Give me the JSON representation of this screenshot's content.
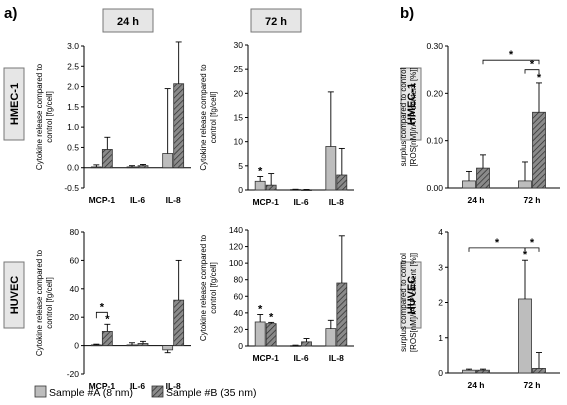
{
  "panel_labels": {
    "a": "a)",
    "b": "b)"
  },
  "col_headers": [
    "24 h",
    "72 h"
  ],
  "row_labels": [
    "HMEC-1",
    "HUVEC"
  ],
  "legend": {
    "sample_a": "Sample #A (8 nm)",
    "sample_b": "Sample #B (35 nm)",
    "colors": {
      "sample_a": "#bdbdbd",
      "sample_b": "#8a8a8a"
    },
    "sample_b_pattern": "diagonal-hatch"
  },
  "chart_data": [
    {
      "id": "hmec_24h",
      "type": "bar",
      "ylabel_line1": "Cytokine release  compared to",
      "ylabel_line2": "control  [fg/cell]",
      "categories": [
        "MCP-1",
        "IL-6",
        "IL-8"
      ],
      "ylim": [
        -0.5,
        3.0
      ],
      "yticks": [
        "-0.5",
        "0.0",
        "0.5",
        "1.0",
        "1.5",
        "2.0",
        "2.5",
        "3.0"
      ],
      "yticks_values": [
        -0.5,
        0.0,
        0.5,
        1.0,
        1.5,
        2.0,
        2.5,
        3.0
      ],
      "series": [
        {
          "name": "Sample #A (8 nm)",
          "values": [
            0.02,
            0.02,
            0.35
          ],
          "errors": [
            0.05,
            0.03,
            1.6
          ]
        },
        {
          "name": "Sample #B (35 nm)",
          "values": [
            0.45,
            0.05,
            2.07
          ],
          "errors": [
            0.3,
            0.03,
            1.03
          ]
        }
      ],
      "annotations": []
    },
    {
      "id": "hmec_72h",
      "type": "bar",
      "ylabel_line1": "Cytokine release  compared to",
      "ylabel_line2": "control  [fg/cell]",
      "categories": [
        "MCP-1",
        "IL-6",
        "IL-8"
      ],
      "ylim": [
        0,
        30
      ],
      "yticks": [
        "0",
        "5",
        "10",
        "15",
        "20",
        "25",
        "30"
      ],
      "yticks_values": [
        0,
        5,
        10,
        15,
        20,
        25,
        30
      ],
      "series": [
        {
          "name": "Sample #A (8 nm)",
          "values": [
            1.8,
            0.1,
            9.0
          ],
          "errors": [
            1.0,
            0.05,
            11.3
          ]
        },
        {
          "name": "Sample #B (35 nm)",
          "values": [
            1.0,
            0.05,
            3.1
          ],
          "errors": [
            2.4,
            0.05,
            5.5
          ]
        }
      ],
      "annotations": [
        {
          "text": "*",
          "category": 0,
          "series": 0
        }
      ]
    },
    {
      "id": "huvec_24h",
      "type": "bar",
      "ylabel_line1": "Cytokine release  compared to",
      "ylabel_line2": "control  [fg/cell]",
      "categories": [
        "MCP-1",
        "IL-6",
        "IL-8"
      ],
      "ylim": [
        -20,
        80
      ],
      "yticks": [
        "-20",
        "0",
        "20",
        "40",
        "60",
        "80"
      ],
      "yticks_values": [
        -20,
        0,
        20,
        40,
        60,
        80
      ],
      "series": [
        {
          "name": "Sample #A (8 nm)",
          "values": [
            0.5,
            0.5,
            -3.0
          ],
          "errors": [
            0.5,
            1.5,
            2.0
          ]
        },
        {
          "name": "Sample #B (35 nm)",
          "values": [
            10.0,
            1.5,
            32.0
          ],
          "errors": [
            5.0,
            1.5,
            28.0
          ]
        }
      ],
      "annotations": [
        {
          "text": "*",
          "category": 0,
          "series": 1
        }
      ],
      "brackets": [
        {
          "text": "*",
          "category": 0
        }
      ]
    },
    {
      "id": "huvec_72h",
      "type": "bar",
      "ylabel_line1": "Cytokine release  compared to",
      "ylabel_line2": "control  [fg/cell]",
      "categories": [
        "MCP-1",
        "IL-6",
        "IL-8"
      ],
      "ylim": [
        0,
        140
      ],
      "yticks": [
        "0",
        "20",
        "40",
        "60",
        "80",
        "100",
        "120",
        "140"
      ],
      "yticks_values": [
        0,
        20,
        40,
        60,
        80,
        100,
        120,
        140
      ],
      "series": [
        {
          "name": "Sample #A (8 nm)",
          "values": [
            29.0,
            0.5,
            21.0
          ],
          "errors": [
            9.0,
            0.5,
            10.0
          ]
        },
        {
          "name": "Sample #B (35 nm)",
          "values": [
            27.0,
            5.0,
            76.0
          ],
          "errors": [
            1.5,
            4.0,
            57.0
          ]
        }
      ],
      "annotations": [
        {
          "text": "*",
          "category": 0,
          "series": 0
        },
        {
          "text": "*",
          "category": 0,
          "series": 1
        }
      ]
    },
    {
      "id": "hmec_ros",
      "type": "bar",
      "ylabel_line1": "surplus compared to control",
      "ylabel_line2": "[ROS[nM]/rATP content [%]]",
      "categories": [
        "24 h",
        "72 h"
      ],
      "ylim": [
        0,
        0.3
      ],
      "yticks": [
        "0.00",
        "0.10",
        "0.20",
        "0.30"
      ],
      "yticks_values": [
        0.0,
        0.1,
        0.2,
        0.3
      ],
      "series": [
        {
          "name": "Sample #A (8 nm)",
          "values": [
            0.015,
            0.015
          ],
          "errors": [
            0.02,
            0.04
          ]
        },
        {
          "name": "Sample #B (35 nm)",
          "values": [
            0.042,
            0.16
          ],
          "errors": [
            0.028,
            0.062
          ]
        }
      ],
      "annotations": [
        {
          "text": "*",
          "category": 1,
          "series": 1
        }
      ],
      "sig_brackets": [
        {
          "text": "*",
          "from": [
            0,
            1
          ],
          "to": [
            1,
            1
          ],
          "level": 0.27
        },
        {
          "text": "*",
          "from": [
            1,
            0
          ],
          "to": [
            1,
            1
          ],
          "level": 0.25
        }
      ]
    },
    {
      "id": "huvec_ros",
      "type": "bar",
      "ylabel_line1": "surplus  compared to control",
      "ylabel_line2": "[ROS[nM]/rATP content [%]]",
      "categories": [
        "24 h",
        "72 h"
      ],
      "ylim": [
        0,
        4
      ],
      "yticks": [
        "0",
        "1",
        "2",
        "3",
        "4"
      ],
      "yticks_values": [
        0,
        1,
        2,
        3,
        4
      ],
      "series": [
        {
          "name": "Sample #A (8 nm)",
          "values": [
            0.08,
            2.1
          ],
          "errors": [
            0.03,
            1.1
          ]
        },
        {
          "name": "Sample #B (35 nm)",
          "values": [
            0.08,
            0.13
          ],
          "errors": [
            0.03,
            0.45
          ]
        }
      ],
      "annotations": [
        {
          "text": "*",
          "category": 1,
          "series": 0
        }
      ],
      "sig_brackets": [
        {
          "text": "*",
          "from": [
            0,
            0
          ],
          "to": [
            1,
            0
          ],
          "level": 3.55
        },
        {
          "text": "*",
          "from": [
            1,
            0
          ],
          "to": [
            1,
            1
          ],
          "level": 3.55
        }
      ]
    }
  ]
}
